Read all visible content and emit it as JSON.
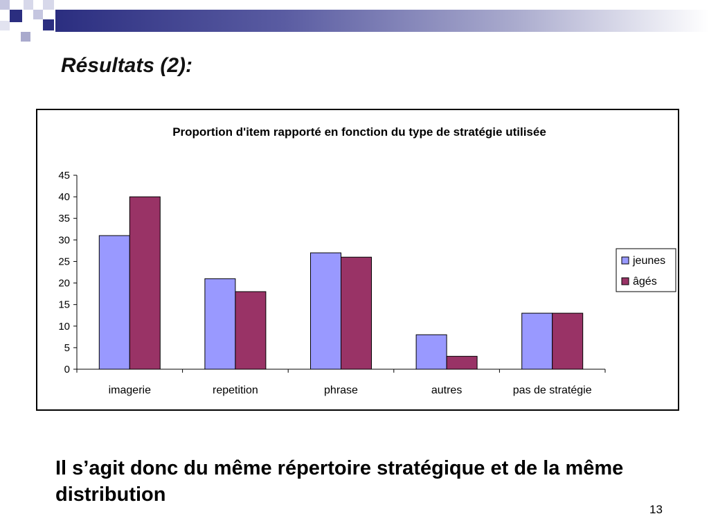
{
  "slide": {
    "title": "Résultats (2):",
    "conclusion": "Il s’agit donc du même répertoire stratégique et de la même distribution",
    "page_number": "13"
  },
  "colors": {
    "jeunes": "#9999ff",
    "ages": "#993366",
    "header_dark": "#2b2e80"
  },
  "chart_data": {
    "type": "bar",
    "title": "Proportion d'item  rapporté en fonction du type de stratégie utilisée",
    "xlabel": "",
    "ylabel": "",
    "categories": [
      "imagerie",
      "repetition",
      "phrase",
      "autres",
      "pas de stratégie"
    ],
    "series": [
      {
        "name": "jeunes",
        "values": [
          31,
          21,
          27,
          8,
          13
        ]
      },
      {
        "name": "âgés",
        "values": [
          40,
          18,
          26,
          3,
          13
        ]
      }
    ],
    "ylim": [
      0,
      45
    ],
    "yticks": [
      "0",
      "5",
      "10",
      "15",
      "20",
      "25",
      "30",
      "35",
      "40",
      "45"
    ],
    "grid": false,
    "legend": "right"
  }
}
